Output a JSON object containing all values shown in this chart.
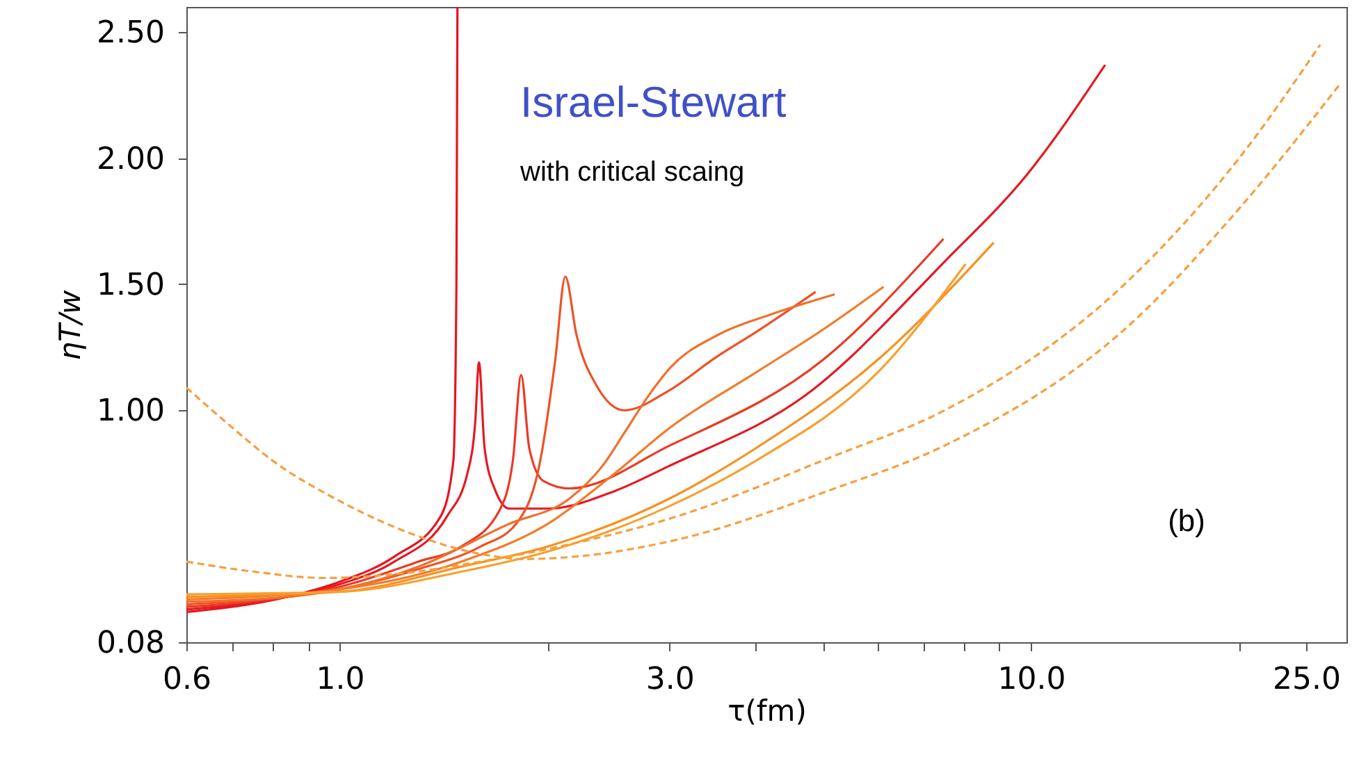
{
  "chart_data": {
    "type": "line",
    "xlabel": "τ(fm)",
    "ylabel": "ηT/w",
    "log": "x",
    "xlim": [
      0.6,
      28.6
    ],
    "ylim": [
      0.08,
      2.6
    ],
    "xticks": [
      0.6,
      {
        "value": 0.7,
        "label": null
      },
      {
        "value": 0.8,
        "label": null
      },
      {
        "value": 0.9,
        "label": null
      },
      {
        "value": 1,
        "label": "1.0"
      },
      {
        "value": 2,
        "label": null
      },
      {
        "value": 3,
        "label": "3.0"
      },
      {
        "value": 4,
        "label": null
      },
      {
        "value": 5,
        "label": null
      },
      {
        "value": 6,
        "label": null
      },
      {
        "value": 7,
        "label": null
      },
      {
        "value": 8,
        "label": null
      },
      {
        "value": 9,
        "label": null
      },
      {
        "value": 10,
        "label": "10.0"
      },
      {
        "value": 20,
        "label": null
      },
      {
        "value": 25,
        "label": "25.0"
      }
    ],
    "yticks": [
      0.08,
      {
        "value": 1,
        "label": "1.00"
      },
      {
        "value": 1.5,
        "label": "1.50"
      },
      {
        "value": 2,
        "label": "2.00"
      },
      {
        "value": 2.5,
        "label": "2.50"
      }
    ],
    "annotations": [
      "Israel-Stewart",
      "with critical scaing",
      "(b)"
    ],
    "series": [
      {
        "color": "#e8141e",
        "x": [
          0.6,
          0.84,
          1.0,
          1.2,
          1.4,
          1.46,
          1.475,
          1.48
        ],
        "values": [
          0.2,
          0.26,
          0.32,
          0.42,
          0.58,
          0.8,
          1.5,
          2.6
        ]
      },
      {
        "color": "#e41a22",
        "x": [
          0.6,
          0.84,
          1.0,
          1.2,
          1.43,
          1.53,
          1.57,
          1.59,
          1.62,
          1.68,
          1.76,
          2.0,
          2.5,
          3.0,
          4.72,
          7.5,
          9.9,
          12.8
        ],
        "values": [
          0.21,
          0.26,
          0.31,
          0.4,
          0.58,
          0.75,
          0.95,
          1.19,
          0.85,
          0.68,
          0.61,
          0.61,
          0.68,
          0.78,
          1.06,
          1.59,
          1.94,
          2.37
        ]
      },
      {
        "color": "#ea3a24",
        "x": [
          0.6,
          0.84,
          1.0,
          1.3,
          1.5,
          1.7,
          1.78,
          1.83,
          1.88,
          1.97,
          2.15,
          3.0,
          5.0,
          7.47
        ],
        "values": [
          0.22,
          0.26,
          0.3,
          0.4,
          0.46,
          0.6,
          0.8,
          1.14,
          0.85,
          0.72,
          0.69,
          0.86,
          1.2,
          1.68
        ]
      },
      {
        "color": "#ee5226",
        "x": [
          0.6,
          0.84,
          1.0,
          1.3,
          1.6,
          1.8,
          1.95,
          2.05,
          2.12,
          2.2,
          2.35,
          2.58,
          3.0,
          3.5,
          4.0,
          4.88
        ],
        "values": [
          0.23,
          0.26,
          0.29,
          0.37,
          0.46,
          0.55,
          0.8,
          1.2,
          1.53,
          1.3,
          1.1,
          1.0,
          1.08,
          1.21,
          1.31,
          1.47
        ]
      },
      {
        "color": "#f0702c",
        "x": [
          0.6,
          0.84,
          1.0,
          1.3,
          1.76,
          2.15,
          2.4,
          2.58,
          2.8,
          3.01,
          3.53,
          4.2,
          5.2
        ],
        "values": [
          0.24,
          0.26,
          0.29,
          0.38,
          0.55,
          0.65,
          0.78,
          0.91,
          1.06,
          1.17,
          1.3,
          1.38,
          1.46
        ]
      },
      {
        "color": "#f37a2c",
        "x": [
          0.6,
          1.0,
          1.5,
          2.0,
          2.5,
          3.0,
          4.0,
          5.0,
          6.12
        ],
        "values": [
          0.25,
          0.29,
          0.4,
          0.55,
          0.75,
          0.93,
          1.15,
          1.32,
          1.49
        ]
      },
      {
        "color": "#f8901e",
        "x": [
          0.6,
          1.0,
          1.5,
          2.0,
          3.0,
          4.0,
          6.0,
          8.83
        ],
        "values": [
          0.26,
          0.28,
          0.38,
          0.46,
          0.65,
          0.85,
          1.2,
          1.665
        ]
      },
      {
        "color": "#f7a030",
        "x": [
          0.6,
          1.0,
          1.5,
          2.0,
          3.0,
          4.0,
          6.0,
          8.04
        ],
        "values": [
          0.27,
          0.28,
          0.36,
          0.44,
          0.62,
          0.8,
          1.15,
          1.58
        ]
      },
      {
        "color": "#f5a040",
        "line_style": "dashed",
        "x": [
          0.6,
          0.75,
          0.95,
          1.2,
          1.6,
          2.0,
          3.0,
          5.2,
          7.5,
          13.9,
          20,
          26.2
        ],
        "values": [
          0.4,
          0.36,
          0.335,
          0.35,
          0.4,
          0.45,
          0.57,
          0.82,
          1.0,
          1.52,
          2.0,
          2.45
        ]
      },
      {
        "color": "#f5a040",
        "line_style": "dashed",
        "x": [
          0.6,
          0.7,
          0.8,
          1.0,
          1.3,
          1.6,
          1.84,
          2.2,
          3.0,
          5.2,
          7.5,
          13.9,
          20,
          28.1
        ],
        "values": [
          1.09,
          0.93,
          0.8,
          0.64,
          0.5,
          0.43,
          0.41,
          0.42,
          0.48,
          0.69,
          0.86,
          1.34,
          1.8,
          2.3
        ]
      }
    ]
  }
}
